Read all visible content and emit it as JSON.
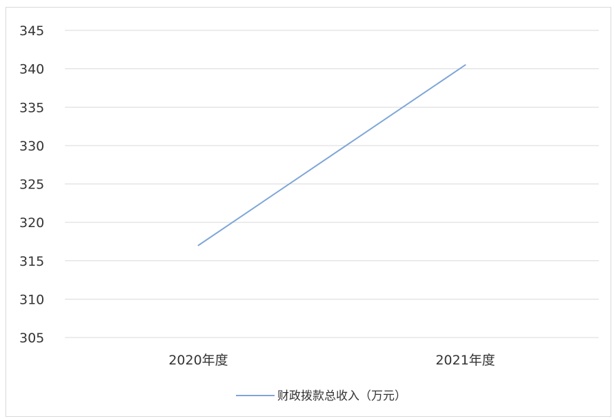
{
  "chart_data": {
    "type": "line",
    "title": "",
    "xlabel": "",
    "ylabel": "",
    "categories": [
      "2020年度",
      "2021年度"
    ],
    "series": [
      {
        "name": "财政拨款总收入（万元）",
        "values": [
          317,
          340.5
        ],
        "color": "#7ea6d8"
      }
    ],
    "ylim": [
      305,
      345
    ],
    "yticks": [
      305,
      310,
      315,
      320,
      325,
      330,
      335,
      340,
      345
    ],
    "grid": true,
    "legend_position": "bottom",
    "colors": {
      "grid": "#d9d9d9",
      "text": "#333333"
    }
  }
}
